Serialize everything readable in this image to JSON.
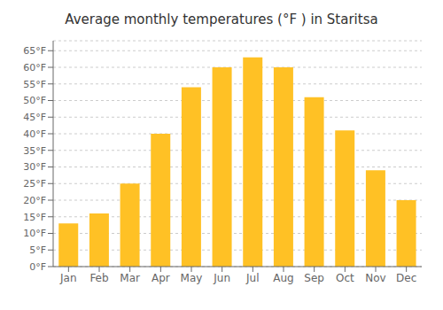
{
  "chart_data": {
    "type": "bar",
    "title": "Average monthly temperatures (°F ) in Staritsa",
    "categories": [
      "Jan",
      "Feb",
      "Mar",
      "Apr",
      "May",
      "Jun",
      "Jul",
      "Aug",
      "Sep",
      "Oct",
      "Nov",
      "Dec"
    ],
    "values": [
      13,
      16,
      25,
      40,
      54,
      60,
      63,
      60,
      51,
      41,
      29,
      20
    ],
    "color": "#FFC125",
    "ylim": [
      0,
      68
    ],
    "yticks": [
      {
        "value": 0,
        "label": "0°F"
      },
      {
        "value": 5,
        "label": "5°F"
      },
      {
        "value": 10,
        "label": "10°F"
      },
      {
        "value": 15,
        "label": "15°F"
      },
      {
        "value": 20,
        "label": "20°F"
      },
      {
        "value": 25,
        "label": "25°F"
      },
      {
        "value": 30,
        "label": "30°F"
      },
      {
        "value": 35,
        "label": "35°F"
      },
      {
        "value": 40,
        "label": "40°F"
      },
      {
        "value": 45,
        "label": "45°F"
      },
      {
        "value": 50,
        "label": "50°F"
      },
      {
        "value": 55,
        "label": "55°F"
      },
      {
        "value": 60,
        "label": "60°F"
      },
      {
        "value": 65,
        "label": "65°F"
      }
    ],
    "grid": true
  }
}
